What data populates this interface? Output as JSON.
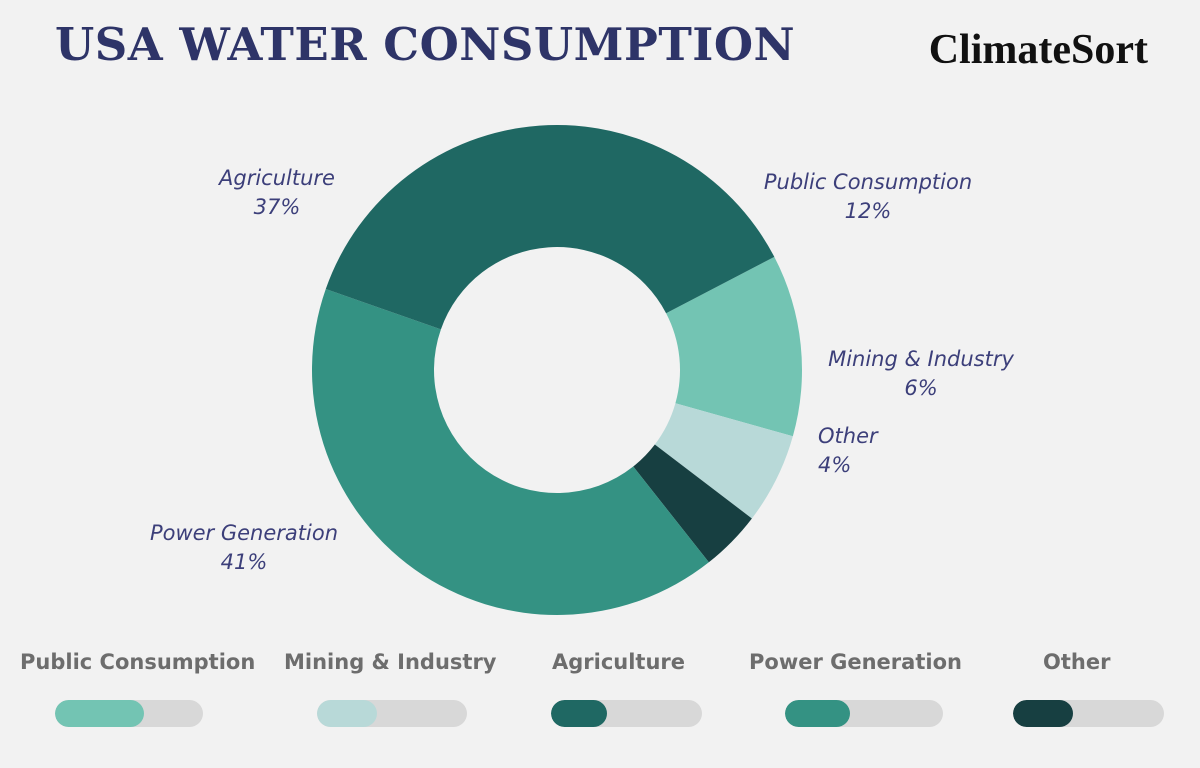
{
  "header": {
    "title": "USA WATER CONSUMPTION",
    "brand": "ClimateSort"
  },
  "chart_data": {
    "type": "pie",
    "donut": true,
    "slices": [
      {
        "name": "Public Consumption",
        "value": 12,
        "label": "12%",
        "color": "#73c4b3"
      },
      {
        "name": "Mining & Industry",
        "value": 6,
        "label": "6%",
        "color": "#b8d9d8"
      },
      {
        "name": "Other",
        "value": 4,
        "label": "4%",
        "color": "#173f41"
      },
      {
        "name": "Power Generation",
        "value": 41,
        "label": "41%",
        "color": "#349283"
      },
      {
        "name": "Agriculture",
        "value": 37,
        "label": "37%",
        "color": "#1f6863"
      }
    ]
  },
  "legend": {
    "items": [
      {
        "label": "Public Consumption",
        "fill": 0.6,
        "color": "#73c4b3"
      },
      {
        "label": "Mining & Industry",
        "fill": 0.4,
        "color": "#b8d9d8"
      },
      {
        "label": "Agriculture",
        "fill": 0.37,
        "color": "#1f6863"
      },
      {
        "label": "Power Generation",
        "fill": 0.41,
        "color": "#349283"
      },
      {
        "label": "Other",
        "fill": 0.4,
        "color": "#173f41"
      }
    ]
  }
}
